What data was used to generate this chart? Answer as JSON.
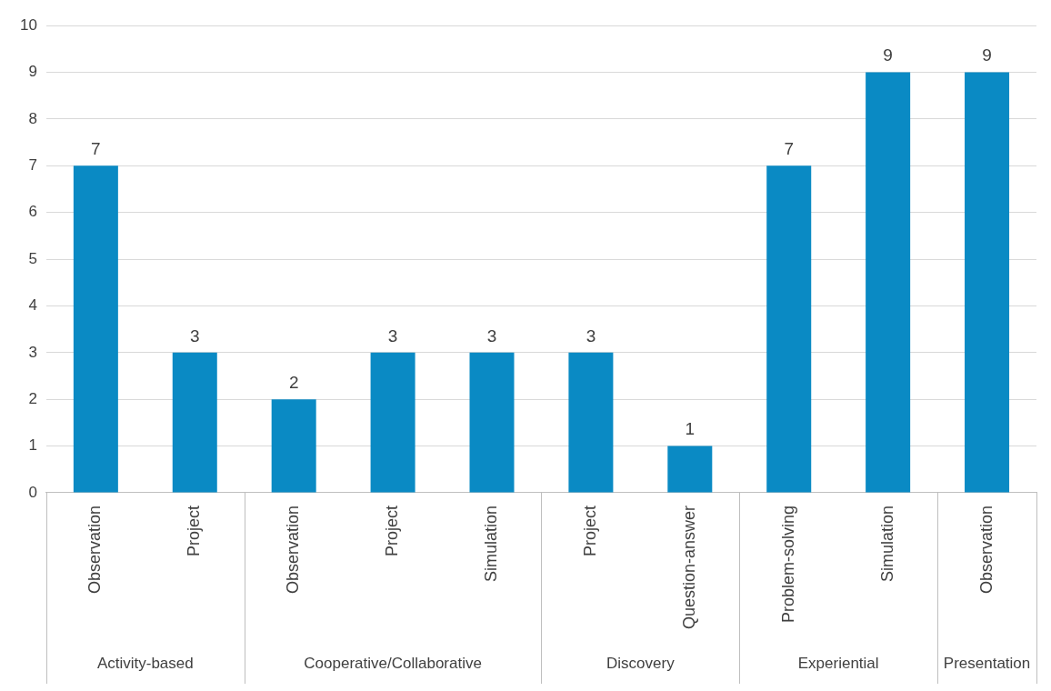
{
  "chart_data": {
    "type": "bar",
    "categories": [
      "Observation",
      "Project",
      "Observation",
      "Project",
      "Simulation",
      "Project",
      "Question-answer",
      "Problem-solving",
      "Simulation",
      "Observation"
    ],
    "values": [
      7,
      3,
      2,
      3,
      3,
      3,
      1,
      7,
      9,
      9
    ],
    "color": "#0a8ac4",
    "ylim": [
      0,
      10
    ],
    "yticks": [
      0,
      1,
      2,
      3,
      4,
      5,
      6,
      7,
      8,
      9,
      10
    ],
    "grid": "y",
    "legend": false,
    "data_labels": true,
    "annotations": [
      "Activity-based",
      "Cooperative/Collaborative",
      "Discovery",
      "Experiential",
      "Presentation"
    ]
  }
}
